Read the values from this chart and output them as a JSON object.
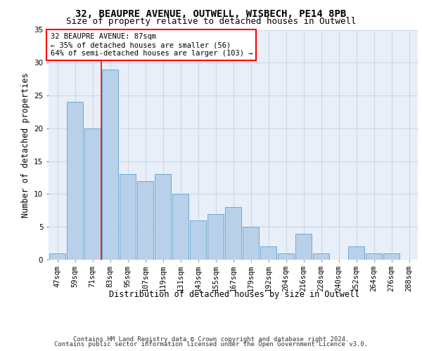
{
  "title_line1": "32, BEAUPRE AVENUE, OUTWELL, WISBECH, PE14 8PB",
  "title_line2": "Size of property relative to detached houses in Outwell",
  "xlabel": "Distribution of detached houses by size in Outwell",
  "ylabel": "Number of detached properties",
  "categories": [
    "47sqm",
    "59sqm",
    "71sqm",
    "83sqm",
    "95sqm",
    "107sqm",
    "119sqm",
    "131sqm",
    "143sqm",
    "155sqm",
    "167sqm",
    "179sqm",
    "192sqm",
    "204sqm",
    "216sqm",
    "228sqm",
    "240sqm",
    "252sqm",
    "264sqm",
    "276sqm",
    "288sqm"
  ],
  "values": [
    1,
    24,
    20,
    29,
    13,
    12,
    13,
    10,
    6,
    7,
    8,
    5,
    2,
    1,
    4,
    1,
    0,
    2,
    1,
    1,
    0
  ],
  "bar_color": "#b8d0ea",
  "bar_edge_color": "#6aaad4",
  "grid_color": "#c8d8e8",
  "bg_color": "#e8eff8",
  "annotation_text": "32 BEAUPRE AVENUE: 87sqm\n← 35% of detached houses are smaller (56)\n64% of semi-detached houses are larger (103) →",
  "annotation_box_color": "white",
  "annotation_box_edge_color": "red",
  "vline_color": "red",
  "vline_x": 2.5,
  "ylim": [
    0,
    35
  ],
  "yticks": [
    0,
    5,
    10,
    15,
    20,
    25,
    30,
    35
  ],
  "footer_line1": "Contains HM Land Registry data © Crown copyright and database right 2024.",
  "footer_line2": "Contains public sector information licensed under the Open Government Licence v3.0.",
  "title_fontsize": 10,
  "subtitle_fontsize": 9,
  "tick_fontsize": 7.5,
  "label_fontsize": 8.5,
  "footer_fontsize": 6.5,
  "annot_fontsize": 7.5
}
